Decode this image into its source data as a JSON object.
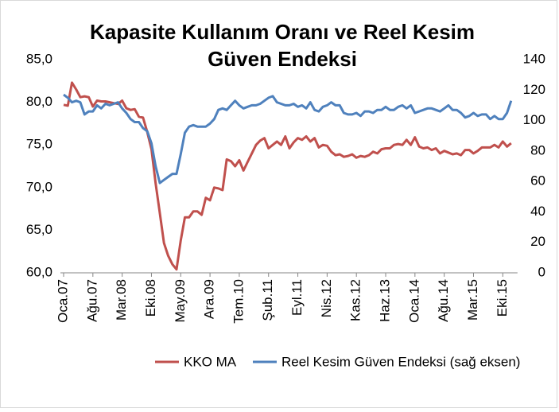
{
  "chart_data": {
    "type": "line",
    "title": [
      "Kapasite Kullanım Oranı ve Reel Kesim",
      "Güven Endeksi"
    ],
    "categories": [
      "Oca.07",
      null,
      null,
      null,
      null,
      null,
      null,
      "Ağu.07",
      null,
      null,
      null,
      null,
      null,
      null,
      "Mar.08",
      null,
      null,
      null,
      null,
      null,
      null,
      "Eki.08",
      null,
      null,
      null,
      null,
      null,
      null,
      "May.09",
      null,
      null,
      null,
      null,
      null,
      null,
      "Ara.09",
      null,
      null,
      null,
      null,
      null,
      null,
      "Tem.10",
      null,
      null,
      null,
      null,
      null,
      null,
      "Şub.11",
      null,
      null,
      null,
      null,
      null,
      null,
      "Eyl.11",
      null,
      null,
      null,
      null,
      null,
      null,
      "Nis.12",
      null,
      null,
      null,
      null,
      null,
      null,
      "Kas.12",
      null,
      null,
      null,
      null,
      null,
      null,
      "Haz.13",
      null,
      null,
      null,
      null,
      null,
      null,
      "Oca.14",
      null,
      null,
      null,
      null,
      null,
      null,
      "Ağu.14",
      null,
      null,
      null,
      null,
      null,
      null,
      "Mar.15",
      null,
      null,
      null,
      null,
      null,
      null,
      "Eki.15",
      null,
      null
    ],
    "series": [
      {
        "name": "KKO MA",
        "color": "#c0504d",
        "values": [
          79.7,
          79.6,
          82.3,
          81.5,
          80.6,
          80.7,
          80.6,
          79.5,
          80.2,
          80.1,
          80.1,
          80.0,
          79.9,
          79.8,
          80.2,
          79.3,
          79.1,
          79.2,
          78.3,
          78.2,
          76.5,
          74.5,
          70.5,
          67.0,
          63.5,
          62.0,
          61.0,
          60.4,
          63.8,
          66.5,
          66.5,
          67.2,
          67.2,
          66.8,
          68.8,
          68.5,
          70.0,
          69.9,
          69.7,
          73.3,
          73.1,
          72.5,
          73.2,
          72.0,
          73.0,
          74.0,
          75.0,
          75.5,
          75.8,
          74.6,
          75.0,
          75.4,
          75.0,
          76.0,
          74.6,
          75.3,
          75.8,
          75.6,
          76.0,
          75.4,
          75.8,
          74.7,
          75.0,
          74.9,
          74.2,
          73.8,
          73.9,
          73.6,
          73.7,
          73.9,
          73.5,
          73.7,
          73.6,
          73.8,
          74.2,
          74.0,
          74.5,
          74.6,
          74.6,
          75.0,
          75.1,
          75.0,
          75.6,
          75.0,
          75.9,
          74.8,
          74.6,
          74.7,
          74.4,
          74.6,
          74.0,
          74.3,
          74.1,
          73.9,
          74.0,
          73.8,
          74.4,
          74.4,
          74.0,
          74.3,
          74.7,
          74.7,
          74.7,
          75.0,
          74.7,
          75.4,
          74.8,
          75.2
        ]
      },
      {
        "name": "Reel Kesim Güven Endeksi (sağ eksen)",
        "color": "#4f81bd",
        "axis": "y2",
        "values": [
          117,
          115,
          112,
          113,
          112,
          104,
          106,
          106,
          110,
          108,
          111,
          110,
          111,
          112,
          108,
          105,
          101,
          99,
          99,
          95,
          93,
          85,
          70,
          59,
          61,
          63,
          65,
          65,
          78,
          92,
          96,
          97,
          96,
          96,
          96,
          98,
          101,
          107,
          108,
          107,
          110,
          113,
          110,
          108,
          109,
          110,
          110,
          111,
          113,
          115,
          116,
          112,
          111,
          110,
          110,
          111,
          109,
          110,
          108,
          112,
          107,
          106,
          109,
          110,
          112,
          110,
          110,
          105,
          104,
          104,
          105,
          103,
          106,
          106,
          105,
          107,
          107,
          109,
          107,
          107,
          109,
          110,
          108,
          110,
          105,
          106,
          107,
          108,
          108,
          107,
          106,
          108,
          110,
          107,
          107,
          105,
          102,
          103,
          105,
          103,
          104,
          104,
          101,
          103,
          101,
          101,
          105,
          113
        ]
      }
    ],
    "ylim": [
      60,
      85
    ],
    "yticks": [
      {
        "value": 60,
        "label": "60,0"
      },
      {
        "value": 65,
        "label": "65,0"
      },
      {
        "value": 70,
        "label": "70,0"
      },
      {
        "value": 75,
        "label": "75,0"
      },
      {
        "value": 80,
        "label": "80,0"
      },
      {
        "value": 85,
        "label": "85,0"
      }
    ],
    "y2lim": [
      0,
      140
    ],
    "y2ticks": [
      0,
      20,
      40,
      60,
      80,
      100,
      120,
      140
    ],
    "grid": false,
    "legend": "bottom"
  }
}
